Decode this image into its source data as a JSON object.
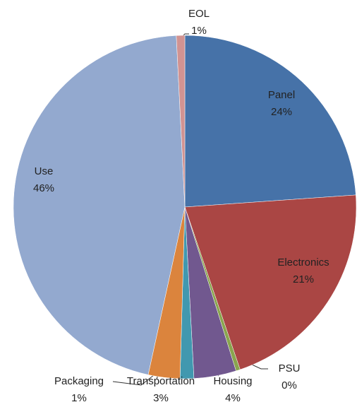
{
  "chart_data": {
    "type": "pie",
    "categories": [
      "Panel",
      "Electronics",
      "PSU",
      "Housing",
      "Packaging",
      "Transportation",
      "Use",
      "EOL"
    ],
    "values": [
      24,
      21,
      0.4,
      4,
      1.3,
      3,
      46,
      0.8
    ],
    "value_labels": [
      "24%",
      "21%",
      "0%",
      "4%",
      "1%",
      "3%",
      "46%",
      "1%"
    ],
    "colors": [
      "#4672a8",
      "#aa4644",
      "#89a54e",
      "#71588f",
      "#4198af",
      "#db843d",
      "#93a9cf",
      "#d19392"
    ]
  }
}
